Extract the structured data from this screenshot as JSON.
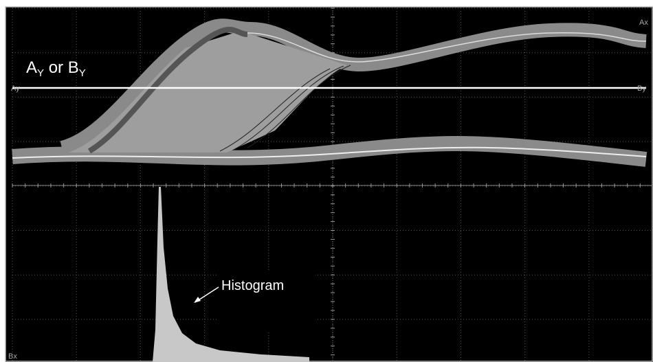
{
  "labels": {
    "trace_a": "A",
    "trace_a_sub": "Y",
    "or": " or ",
    "trace_b": "B",
    "trace_b_sub": "Y",
    "ax_top": "Ax",
    "ay_left": "Ay",
    "by_right": "By",
    "bx_bottom": "Bx",
    "histogram": "Histogram"
  }
}
